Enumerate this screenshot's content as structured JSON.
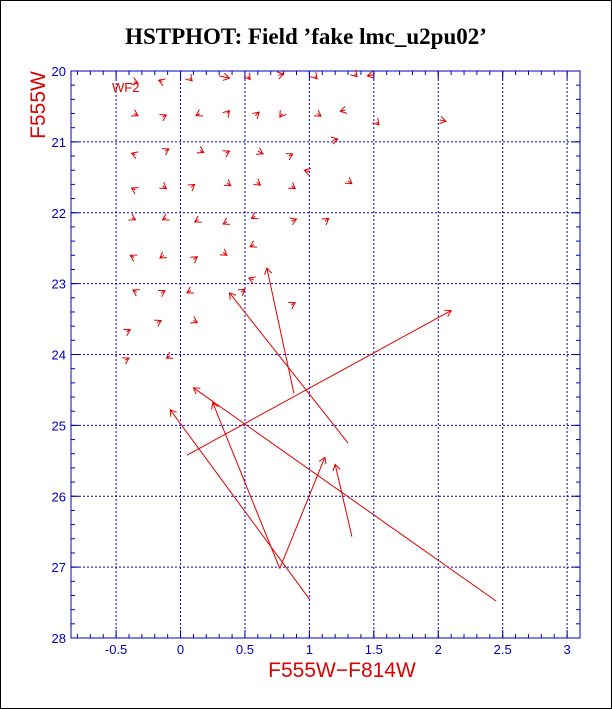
{
  "chart_data": {
    "type": "scatter",
    "title": "HSTPHOT: Field ’fake lmc_u2pu02’",
    "xlabel": "F555W−F814W",
    "ylabel": "F555W",
    "chip_label": "WF2",
    "xlim": [
      -0.85,
      3.1
    ],
    "ylim": [
      28,
      20
    ],
    "xticks": [
      "-0.5",
      "0",
      "0.5",
      "1",
      "1.5",
      "2",
      "2.5",
      "3"
    ],
    "xtick_values": [
      -0.5,
      0,
      0.5,
      1,
      1.5,
      2,
      2.5,
      3
    ],
    "yticks": [
      "20",
      "21",
      "22",
      "23",
      "24",
      "25",
      "26",
      "27",
      "28"
    ],
    "ytick_values": [
      20,
      21,
      22,
      23,
      24,
      25,
      26,
      27,
      28
    ],
    "grid": true,
    "colors": {
      "axes": "#0000c0",
      "marks": "#e00000",
      "title": "#000000"
    },
    "vectors": [
      {
        "x1": -0.36,
        "y1": 20.15,
        "x2": -0.33,
        "y2": 20.17
      },
      {
        "x1": -0.14,
        "y1": 20.15,
        "x2": -0.17,
        "y2": 20.13
      },
      {
        "x1": 0.07,
        "y1": 20.1,
        "x2": 0.09,
        "y2": 20.14
      },
      {
        "x1": 0.3,
        "y1": 20.07,
        "x2": 0.38,
        "y2": 20.1
      },
      {
        "x1": 0.52,
        "y1": 20.07,
        "x2": 0.54,
        "y2": 20.12
      },
      {
        "x1": 0.76,
        "y1": 20.06,
        "x2": 0.8,
        "y2": 20.04
      },
      {
        "x1": 1.04,
        "y1": 20.07,
        "x2": 1.06,
        "y2": 20.11
      },
      {
        "x1": 1.35,
        "y1": 20.04,
        "x2": 1.37,
        "y2": 20.08
      },
      {
        "x1": 1.5,
        "y1": 20.05,
        "x2": 1.45,
        "y2": 20.07
      },
      {
        "x1": -0.36,
        "y1": 20.6,
        "x2": -0.33,
        "y2": 20.63
      },
      {
        "x1": -0.14,
        "y1": 20.65,
        "x2": -0.11,
        "y2": 20.62
      },
      {
        "x1": 0.15,
        "y1": 20.6,
        "x2": 0.12,
        "y2": 20.63
      },
      {
        "x1": 0.36,
        "y1": 20.6,
        "x2": 0.38,
        "y2": 20.56
      },
      {
        "x1": 0.58,
        "y1": 20.63,
        "x2": 0.61,
        "y2": 20.58
      },
      {
        "x1": 0.79,
        "y1": 20.6,
        "x2": 0.77,
        "y2": 20.65
      },
      {
        "x1": 1.06,
        "y1": 20.6,
        "x2": 1.09,
        "y2": 20.64
      },
      {
        "x1": 1.28,
        "y1": 20.55,
        "x2": 1.24,
        "y2": 20.57
      },
      {
        "x1": 1.52,
        "y1": 20.72,
        "x2": 1.54,
        "y2": 20.76
      },
      {
        "x1": 2.01,
        "y1": 20.69,
        "x2": 2.06,
        "y2": 20.71
      },
      {
        "x1": 1.18,
        "y1": 20.98,
        "x2": 1.22,
        "y2": 20.96
      },
      {
        "x1": -0.35,
        "y1": 21.18,
        "x2": -0.38,
        "y2": 21.16
      },
      {
        "x1": -0.12,
        "y1": 21.13,
        "x2": -0.09,
        "y2": 21.1
      },
      {
        "x1": 0.15,
        "y1": 21.12,
        "x2": 0.18,
        "y2": 21.15
      },
      {
        "x1": 0.35,
        "y1": 21.16,
        "x2": 0.38,
        "y2": 21.13
      },
      {
        "x1": 0.6,
        "y1": 21.13,
        "x2": 0.64,
        "y2": 21.17
      },
      {
        "x1": 0.84,
        "y1": 21.2,
        "x2": 0.87,
        "y2": 21.17
      },
      {
        "x1": 1.0,
        "y1": 21.42,
        "x2": 0.96,
        "y2": 21.4
      },
      {
        "x1": -0.35,
        "y1": 21.68,
        "x2": -0.38,
        "y2": 21.65
      },
      {
        "x1": -0.14,
        "y1": 21.62,
        "x2": -0.11,
        "y2": 21.66
      },
      {
        "x1": 0.08,
        "y1": 21.64,
        "x2": 0.11,
        "y2": 21.6
      },
      {
        "x1": 0.36,
        "y1": 21.58,
        "x2": 0.39,
        "y2": 21.62
      },
      {
        "x1": 0.59,
        "y1": 21.57,
        "x2": 0.62,
        "y2": 21.61
      },
      {
        "x1": 0.86,
        "y1": 21.62,
        "x2": 0.89,
        "y2": 21.66
      },
      {
        "x1": 1.3,
        "y1": 21.55,
        "x2": 1.33,
        "y2": 21.59
      },
      {
        "x1": -0.38,
        "y1": 22.07,
        "x2": -0.35,
        "y2": 22.1
      },
      {
        "x1": -0.11,
        "y1": 22.07,
        "x2": -0.14,
        "y2": 22.1
      },
      {
        "x1": 0.14,
        "y1": 22.1,
        "x2": 0.11,
        "y2": 22.13
      },
      {
        "x1": 0.36,
        "y1": 22.13,
        "x2": 0.33,
        "y2": 22.16
      },
      {
        "x1": 0.58,
        "y1": 22.05,
        "x2": 0.55,
        "y2": 22.08
      },
      {
        "x1": 0.86,
        "y1": 22.12,
        "x2": 0.9,
        "y2": 22.09
      },
      {
        "x1": 1.12,
        "y1": 22.12,
        "x2": 1.15,
        "y2": 22.08
      },
      {
        "x1": -0.36,
        "y1": 22.63,
        "x2": -0.39,
        "y2": 22.6
      },
      {
        "x1": -0.13,
        "y1": 22.6,
        "x2": -0.16,
        "y2": 22.64
      },
      {
        "x1": 0.1,
        "y1": 22.66,
        "x2": 0.13,
        "y2": 22.62
      },
      {
        "x1": 0.33,
        "y1": 22.56,
        "x2": 0.36,
        "y2": 22.6
      },
      {
        "x1": 0.57,
        "y1": 22.45,
        "x2": 0.54,
        "y2": 22.48
      },
      {
        "x1": 0.57,
        "y1": 22.95,
        "x2": 0.53,
        "y2": 22.92
      },
      {
        "x1": -0.34,
        "y1": 23.12,
        "x2": -0.37,
        "y2": 23.09
      },
      {
        "x1": -0.15,
        "y1": 23.13,
        "x2": -0.12,
        "y2": 23.1
      },
      {
        "x1": 0.08,
        "y1": 23.1,
        "x2": 0.05,
        "y2": 23.13
      },
      {
        "x1": 0.47,
        "y1": 23.12,
        "x2": 0.5,
        "y2": 23.08
      },
      {
        "x1": 0.86,
        "y1": 23.3,
        "x2": 0.89,
        "y2": 23.27
      },
      {
        "x1": -0.42,
        "y1": 23.68,
        "x2": -0.39,
        "y2": 23.65
      },
      {
        "x1": -0.18,
        "y1": 23.55,
        "x2": -0.15,
        "y2": 23.52
      },
      {
        "x1": 0.1,
        "y1": 23.52,
        "x2": 0.13,
        "y2": 23.55
      },
      {
        "x1": -0.43,
        "y1": 24.08,
        "x2": -0.4,
        "y2": 24.05
      },
      {
        "x1": -0.08,
        "y1": 24.02,
        "x2": -0.11,
        "y2": 24.05
      },
      {
        "x1": 0.05,
        "y1": 25.42,
        "x2": 2.1,
        "y2": 23.38
      },
      {
        "x1": 1.3,
        "y1": 25.25,
        "x2": 0.38,
        "y2": 23.13
      },
      {
        "x1": 0.88,
        "y1": 24.55,
        "x2": 0.67,
        "y2": 22.78
      },
      {
        "x1": 2.45,
        "y1": 27.48,
        "x2": 0.1,
        "y2": 24.47
      },
      {
        "x1": 1.0,
        "y1": 27.45,
        "x2": -0.08,
        "y2": 24.78
      },
      {
        "x1": 0.77,
        "y1": 27.02,
        "x2": 0.25,
        "y2": 24.68
      },
      {
        "x1": 0.77,
        "y1": 27.02,
        "x2": 1.12,
        "y2": 25.45
      },
      {
        "x1": 1.33,
        "y1": 26.57,
        "x2": 1.2,
        "y2": 25.55
      }
    ]
  }
}
